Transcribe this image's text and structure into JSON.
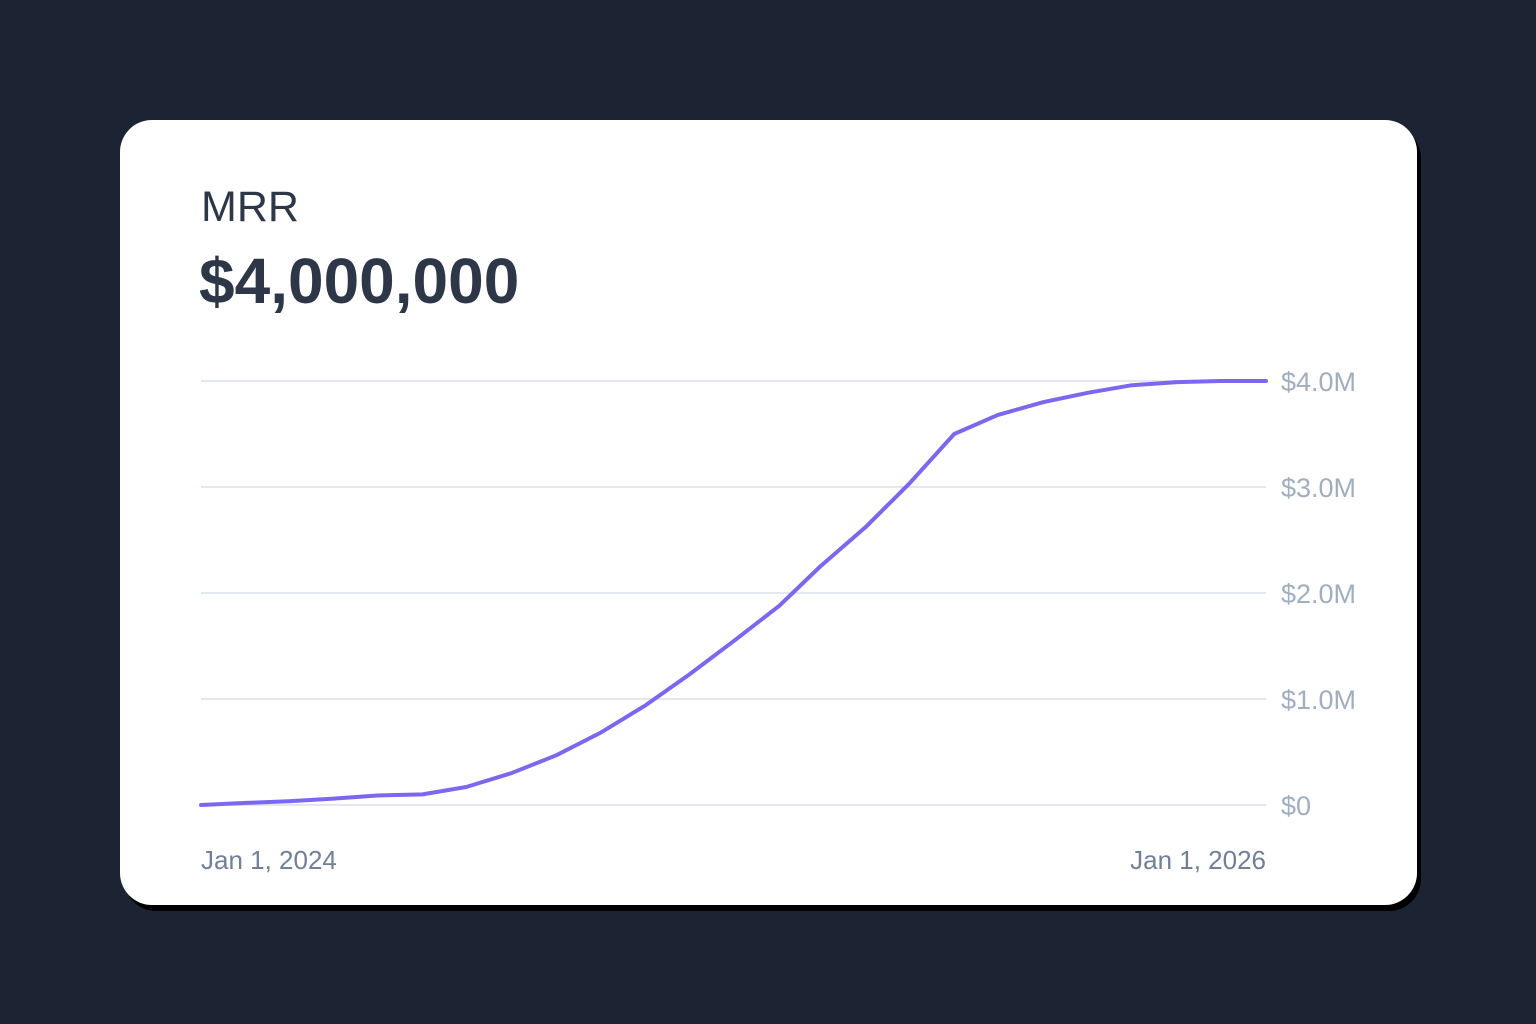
{
  "card": {
    "label": "MRR",
    "value": "$4,000,000"
  },
  "colors": {
    "background": "#1c2434",
    "card": "#ffffff",
    "text": "#2d3748",
    "muted": "#a0aec0",
    "axis_label": "#718096",
    "line": "#7b68ee",
    "grid": "#e2e8f0"
  },
  "chart_data": {
    "type": "line",
    "title": "",
    "xlabel": "",
    "ylabel": "",
    "x_axis": {
      "start_label": "Jan 1, 2024",
      "end_label": "Jan 1, 2026",
      "range": [
        "2024-01-01",
        "2026-01-01"
      ]
    },
    "y_axis": {
      "position": "right",
      "ylim": [
        0,
        4000000
      ],
      "ticks": [
        {
          "value": 0,
          "label": "$0"
        },
        {
          "value": 1000000,
          "label": "$1.0M"
        },
        {
          "value": 2000000,
          "label": "$2.0M"
        },
        {
          "value": 3000000,
          "label": "$3.0M"
        },
        {
          "value": 4000000,
          "label": "$4.0M"
        }
      ]
    },
    "grid": true,
    "series": [
      {
        "color": "#7b68ee",
        "points": [
          {
            "x": "2024-01-01",
            "y": 0
          },
          {
            "x": "2024-02-01",
            "y": 20000
          },
          {
            "x": "2024-03-01",
            "y": 35000
          },
          {
            "x": "2024-04-01",
            "y": 60000
          },
          {
            "x": "2024-05-01",
            "y": 90000
          },
          {
            "x": "2024-06-01",
            "y": 100000
          },
          {
            "x": "2024-07-01",
            "y": 170000
          },
          {
            "x": "2024-08-01",
            "y": 300000
          },
          {
            "x": "2024-09-01",
            "y": 470000
          },
          {
            "x": "2024-10-01",
            "y": 680000
          },
          {
            "x": "2024-11-01",
            "y": 940000
          },
          {
            "x": "2024-12-01",
            "y": 1230000
          },
          {
            "x": "2025-01-01",
            "y": 1550000
          },
          {
            "x": "2025-02-01",
            "y": 1880000
          },
          {
            "x": "2025-03-01",
            "y": 2250000
          },
          {
            "x": "2025-04-01",
            "y": 2620000
          },
          {
            "x": "2025-05-01",
            "y": 3030000
          },
          {
            "x": "2025-06-01",
            "y": 3500000
          },
          {
            "x": "2025-07-01",
            "y": 3680000
          },
          {
            "x": "2025-08-01",
            "y": 3800000
          },
          {
            "x": "2025-09-01",
            "y": 3890000
          },
          {
            "x": "2025-10-01",
            "y": 3960000
          },
          {
            "x": "2025-11-01",
            "y": 3990000
          },
          {
            "x": "2025-12-01",
            "y": 4000000
          },
          {
            "x": "2026-01-01",
            "y": 4000000
          }
        ]
      }
    ]
  }
}
